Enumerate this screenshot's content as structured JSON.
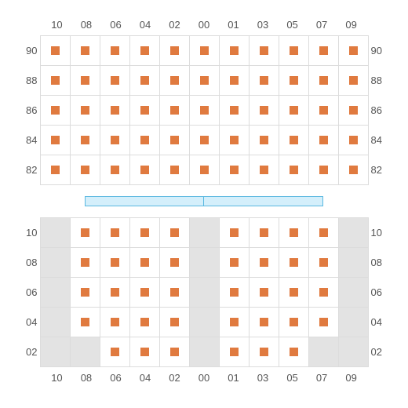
{
  "colors": {
    "grid_border": "#dcdcdc",
    "seat_available_bg": "#ffffff",
    "seat_unavailable_bg": "#e3e3e3",
    "seat_marker": "#e07a3f",
    "label_text": "#555555",
    "divider_fill": "#d4effb",
    "divider_border": "#5ab8e0"
  },
  "fontsize": 13,
  "cell_size": 38,
  "marker_size": 11,
  "columns": [
    "10",
    "08",
    "06",
    "04",
    "02",
    "00",
    "01",
    "03",
    "05",
    "07",
    "09"
  ],
  "top_section": {
    "rows": [
      "90",
      "88",
      "86",
      "84",
      "82"
    ],
    "seats": [
      [
        1,
        1,
        1,
        1,
        1,
        1,
        1,
        1,
        1,
        1,
        1
      ],
      [
        1,
        1,
        1,
        1,
        1,
        1,
        1,
        1,
        1,
        1,
        1
      ],
      [
        1,
        1,
        1,
        1,
        1,
        1,
        1,
        1,
        1,
        1,
        1
      ],
      [
        1,
        1,
        1,
        1,
        1,
        1,
        1,
        1,
        1,
        1,
        1
      ],
      [
        1,
        1,
        1,
        1,
        1,
        1,
        1,
        1,
        1,
        1,
        1
      ]
    ]
  },
  "divider": {
    "segments": 2,
    "segment_cols": 4
  },
  "bottom_section": {
    "rows": [
      "10",
      "08",
      "06",
      "04",
      "02"
    ],
    "seats": [
      [
        0,
        1,
        1,
        1,
        1,
        0,
        1,
        1,
        1,
        1,
        0
      ],
      [
        0,
        1,
        1,
        1,
        1,
        0,
        1,
        1,
        1,
        1,
        0
      ],
      [
        0,
        1,
        1,
        1,
        1,
        0,
        1,
        1,
        1,
        1,
        0
      ],
      [
        0,
        1,
        1,
        1,
        1,
        0,
        1,
        1,
        1,
        1,
        0
      ],
      [
        0,
        0,
        1,
        1,
        1,
        0,
        1,
        1,
        1,
        0,
        0
      ]
    ]
  }
}
